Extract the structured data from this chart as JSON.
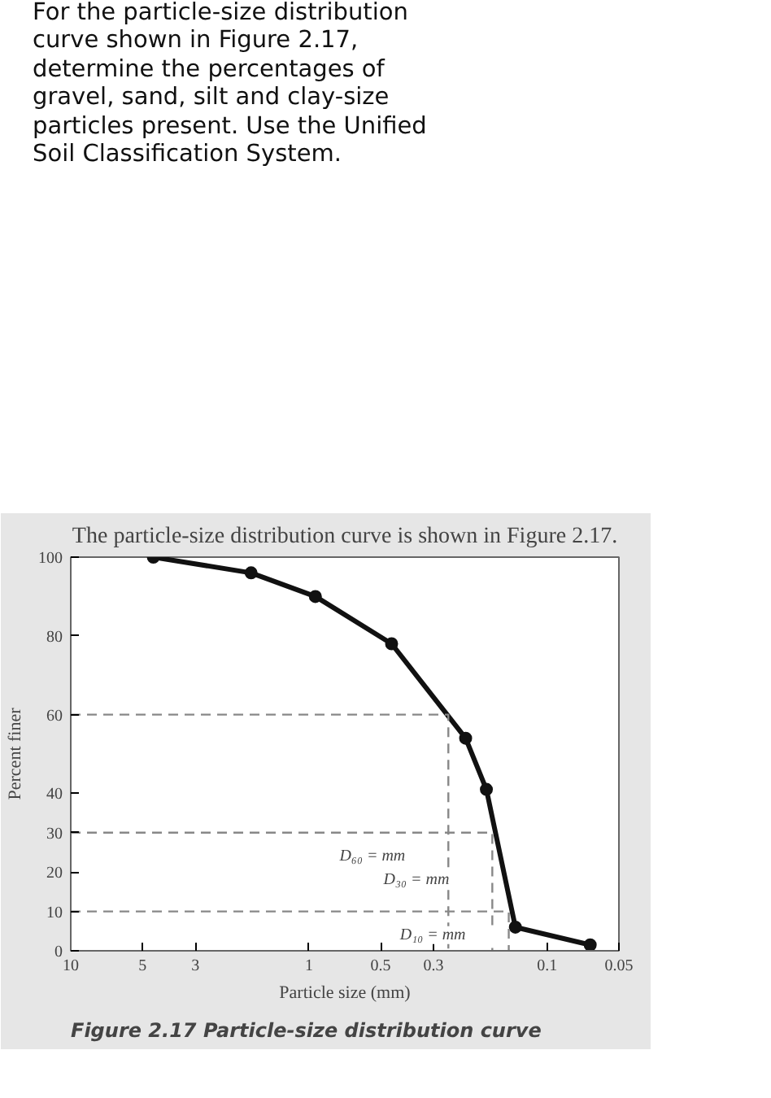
{
  "chart_data": {
    "type": "line",
    "title": "For the particle-size distribution\ncurve shown in Figure 2.17,\ndetermine the percentages of\ngravel, sand, silt and clay-size\nparticles present. Use the Unified\nSoil Classification System.",
    "subtitle": "The particle-size distribution curve is shown in Figure 2.17.",
    "xlabel": "Particle size (mm)",
    "ylabel": "Percent finer",
    "log": "x",
    "xlim": [
      10,
      0.05
    ],
    "xticks": [
      10,
      5,
      3,
      1,
      0.5,
      0.3,
      0.1,
      0.05
    ],
    "ylim": [
      0,
      100
    ],
    "yticks": [
      0,
      10,
      20,
      30,
      40,
      60,
      80,
      100
    ],
    "grid": false,
    "series": [
      {
        "color": "#111111",
        "marker": "circle",
        "line_style": "solid",
        "x": [
          4.5,
          1.75,
          0.94,
          0.45,
          0.22,
          0.18,
          0.136,
          0.066
        ],
        "values": [
          100,
          96,
          90,
          78,
          54,
          41,
          6,
          1.5
        ]
      },
      {
        "color": "#888888",
        "marker": "none",
        "line_style": "dashed",
        "x": [
          10,
          0.26,
          0.26
        ],
        "values": [
          60,
          60,
          0
        ]
      },
      {
        "color": "#888888",
        "marker": "none",
        "line_style": "dashed",
        "x": [
          10,
          0.17,
          0.17
        ],
        "values": [
          30,
          30,
          0
        ]
      },
      {
        "color": "#888888",
        "marker": "none",
        "line_style": "dashed",
        "x": [
          10,
          0.145,
          0.145
        ],
        "values": [
          10,
          10,
          0
        ]
      }
    ],
    "annotations": [
      {
        "text": "D₆₀ =          mm",
        "x": 0.26,
        "y": 24
      },
      {
        "text": "D₃₀ =          mm",
        "x": 0.17,
        "y": 18
      },
      {
        "text": "D₁₀ =          mm",
        "x": 0.145,
        "y": 4
      },
      "Figure 2.17 Particle-size distribution curve"
    ]
  }
}
